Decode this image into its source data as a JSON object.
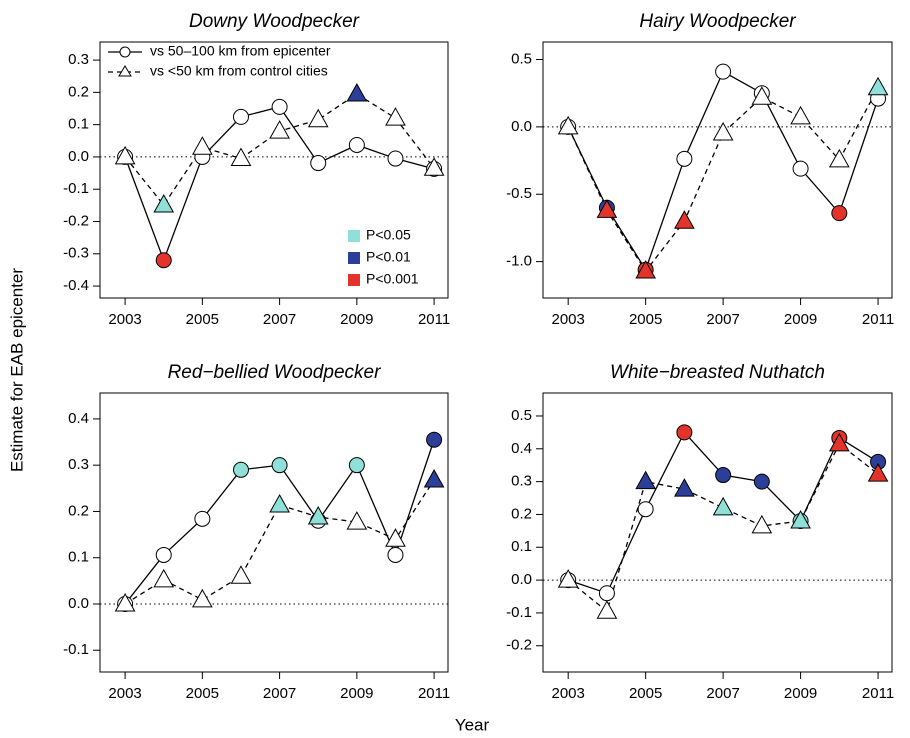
{
  "xlabel": "Year",
  "ylabel": "Estimate for EAB epicenter",
  "chart_data": [
    {
      "type": "line",
      "title": "Downy Woodpecker",
      "x": [
        2003,
        2004,
        2005,
        2006,
        2007,
        2008,
        2009,
        2010,
        2011
      ],
      "xlim": [
        2002.35,
        2011.36
      ],
      "xticks": [
        2003,
        2005,
        2007,
        2009,
        2011
      ],
      "ylim": [
        -0.437,
        0.356
      ],
      "yticks": [
        0.3,
        0.2,
        0.1,
        {
          "value": 0,
          "label": "0.0"
        },
        -0.1,
        -0.2,
        -0.3,
        -0.4
      ],
      "hline": 0,
      "legend": "topleft",
      "series": [
        {
          "name": "vs 50–100 km from epicenter",
          "marker": "circle",
          "dashed": false,
          "color": "#000000",
          "values": [
            0.0,
            -0.32,
            0.0,
            0.124,
            0.155,
            -0.019,
            0.037,
            -0.005,
            -0.037
          ],
          "point_colors": [
            "#ffffff",
            "#e3342b",
            "#ffffff",
            "#ffffff",
            "#ffffff",
            "#ffffff",
            "#ffffff",
            "#ffffff",
            "#ffffff"
          ]
        },
        {
          "name": "vs <50 km from control cities",
          "marker": "triangle",
          "dashed": true,
          "color": "#000000",
          "values": [
            0.0,
            -0.149,
            0.03,
            -0.005,
            0.08,
            0.115,
            0.195,
            0.12,
            -0.035
          ],
          "point_colors": [
            "#ffffff",
            "#8fe0d8",
            "#ffffff",
            "#ffffff",
            "#ffffff",
            "#ffffff",
            "#2c3f98",
            "#ffffff",
            "#ffffff"
          ]
        }
      ],
      "significance_legend": [
        {
          "label": "P<0.05",
          "color": "#8fe0d8"
        },
        {
          "label": "P<0.01",
          "color": "#2c3f98"
        },
        {
          "label": "P<0.001",
          "color": "#e3342b"
        }
      ]
    },
    {
      "type": "line",
      "title": "Hairy Woodpecker",
      "x": [
        2003,
        2004,
        2005,
        2006,
        2007,
        2008,
        2009,
        2010,
        2011
      ],
      "xlim": [
        2002.35,
        2011.36
      ],
      "xticks": [
        2003,
        2005,
        2007,
        2009,
        2011
      ],
      "ylim": [
        -1.27,
        0.63
      ],
      "yticks": [
        0.5,
        {
          "value": 0,
          "label": "0.0"
        },
        -0.5,
        {
          "value": -1,
          "label": "-1.0"
        }
      ],
      "hline": 0,
      "series": [
        {
          "marker": "circle",
          "dashed": false,
          "color": "#000000",
          "values": [
            0.0,
            -0.6,
            -1.06,
            -0.237,
            0.41,
            0.25,
            -0.31,
            -0.64,
            0.21
          ],
          "point_colors": [
            "#ffffff",
            "#2c3f98",
            "#e3342b",
            "#ffffff",
            "#ffffff",
            "#ffffff",
            "#ffffff",
            "#e3342b",
            "#ffffff"
          ]
        },
        {
          "marker": "triangle",
          "dashed": true,
          "color": "#000000",
          "values": [
            0.0,
            -0.62,
            -1.07,
            -0.7,
            -0.045,
            0.22,
            0.074,
            -0.245,
            0.29
          ],
          "point_colors": [
            "#ffffff",
            "#e3342b",
            "#e3342b",
            "#e3342b",
            "#ffffff",
            "#ffffff",
            "#ffffff",
            "#ffffff",
            "#8fe0d8"
          ]
        }
      ]
    },
    {
      "type": "line",
      "title": "Red−bellied Woodpecker",
      "x": [
        2003,
        2004,
        2005,
        2006,
        2007,
        2008,
        2009,
        2010,
        2011
      ],
      "xlim": [
        2002.35,
        2011.36
      ],
      "xticks": [
        2003,
        2005,
        2007,
        2009,
        2011
      ],
      "ylim": [
        -0.147,
        0.456
      ],
      "yticks": [
        0.4,
        0.3,
        0.2,
        0.1,
        {
          "value": 0,
          "label": "0.0"
        },
        -0.1
      ],
      "hline": 0,
      "series": [
        {
          "marker": "circle",
          "dashed": false,
          "color": "#000000",
          "values": [
            0.0,
            0.106,
            0.184,
            0.29,
            0.3,
            0.18,
            0.3,
            0.106,
            0.355
          ],
          "point_colors": [
            "#ffffff",
            "#ffffff",
            "#ffffff",
            "#8fe0d8",
            "#8fe0d8",
            "#ffffff",
            "#8fe0d8",
            "#ffffff",
            "#2c3f98"
          ]
        },
        {
          "marker": "triangle",
          "dashed": true,
          "color": "#000000",
          "values": [
            0.0,
            0.052,
            0.009,
            0.06,
            0.214,
            0.188,
            0.177,
            0.14,
            0.268
          ],
          "point_colors": [
            "#ffffff",
            "#ffffff",
            "#ffffff",
            "#ffffff",
            "#8fe0d8",
            "#8fe0d8",
            "#ffffff",
            "#ffffff",
            "#2c3f98"
          ]
        }
      ]
    },
    {
      "type": "line",
      "title": "White−breasted Nuthatch",
      "x": [
        2003,
        2004,
        2005,
        2006,
        2007,
        2008,
        2009,
        2010,
        2011
      ],
      "xlim": [
        2002.35,
        2011.36
      ],
      "xticks": [
        2003,
        2005,
        2007,
        2009,
        2011
      ],
      "ylim": [
        -0.28,
        0.57
      ],
      "yticks": [
        0.5,
        0.4,
        0.3,
        0.2,
        0.1,
        {
          "value": 0,
          "label": "0.0"
        },
        -0.1,
        -0.2
      ],
      "hline": 0,
      "series": [
        {
          "marker": "circle",
          "dashed": false,
          "color": "#000000",
          "values": [
            0.0,
            -0.04,
            0.216,
            0.45,
            0.32,
            0.3,
            0.18,
            0.433,
            0.36
          ],
          "point_colors": [
            "#ffffff",
            "#ffffff",
            "#ffffff",
            "#e3342b",
            "#2c3f98",
            "#2c3f98",
            "#8fe0d8",
            "#e3342b",
            "#2c3f98"
          ]
        },
        {
          "marker": "triangle",
          "dashed": true,
          "color": "#000000",
          "values": [
            0.0,
            -0.095,
            0.3,
            0.277,
            0.22,
            0.165,
            0.18,
            0.415,
            0.323
          ],
          "point_colors": [
            "#ffffff",
            "#ffffff",
            "#2c3f98",
            "#2c3f98",
            "#8fe0d8",
            "#ffffff",
            "#8fe0d8",
            "#e3342b",
            "#e3342b"
          ]
        }
      ]
    }
  ]
}
